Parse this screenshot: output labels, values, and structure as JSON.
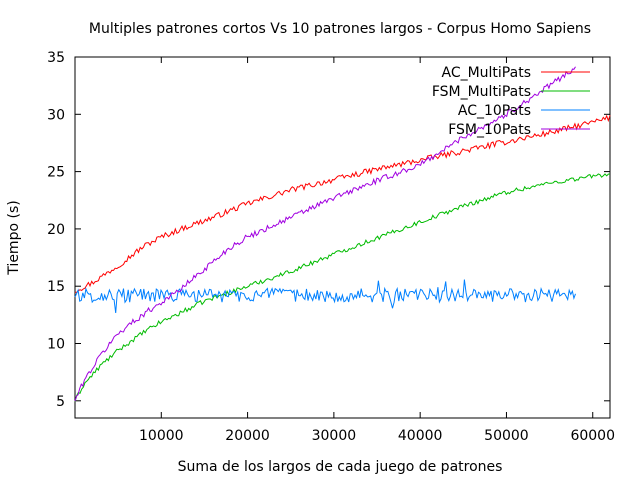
{
  "chart_data": {
    "type": "line",
    "title": "Multiples patrones cortos Vs 10 patrones largos - Corpus Homo Sapiens",
    "xlabel": "Suma de los largos de cada juego de patrones",
    "ylabel": "Tiempo (s)",
    "xlim": [
      0,
      62000
    ],
    "ylim": [
      3.5,
      35
    ],
    "xticks": [
      10000,
      20000,
      30000,
      40000,
      50000,
      60000
    ],
    "yticks": [
      5,
      10,
      15,
      20,
      25,
      30,
      35
    ],
    "grid": false,
    "legend_position": "top-right",
    "series": [
      {
        "name": "AC_MultiPats",
        "color": "#ff0000",
        "x": [
          0,
          2000,
          5000,
          8000,
          10000,
          13000,
          16000,
          20000,
          25000,
          30000,
          35000,
          40000,
          45000,
          50000,
          55000,
          60000,
          62000
        ],
        "y": [
          14.6,
          15.3,
          16.8,
          18.5,
          19.3,
          20.2,
          21.0,
          22.2,
          23.4,
          24.3,
          25.2,
          26.0,
          26.8,
          27.6,
          28.4,
          29.3,
          29.7
        ],
        "noise": 0.25
      },
      {
        "name": "FSM_MultiPats",
        "color": "#00bb00",
        "x": [
          0,
          1000,
          3000,
          5000,
          8000,
          10000,
          12000,
          15000,
          20000,
          25000,
          30000,
          35000,
          40000,
          45000,
          50000,
          55000,
          60000,
          62000
        ],
        "y": [
          5.0,
          6.4,
          8.1,
          9.4,
          11.0,
          11.9,
          12.6,
          13.7,
          15.0,
          16.3,
          17.8,
          19.2,
          20.6,
          22.0,
          23.2,
          24.0,
          24.6,
          24.8
        ],
        "noise": 0.2
      },
      {
        "name": "AC_10Pats",
        "color": "#0080ff",
        "x": [
          0,
          58000
        ],
        "y": [
          14.2,
          14.2
        ],
        "noise": 0.6
      },
      {
        "name": "FSM_10Pats",
        "color": "#a000e0",
        "x": [
          0,
          1000,
          3000,
          5000,
          8000,
          10000,
          12000,
          15000,
          18000,
          20000,
          25000,
          30000,
          35000,
          40000,
          45000,
          50000,
          55000,
          58000
        ],
        "y": [
          5.0,
          6.7,
          9.0,
          10.9,
          12.6,
          13.6,
          14.6,
          16.5,
          18.4,
          19.3,
          21.0,
          22.7,
          24.2,
          25.6,
          28.0,
          30.0,
          32.5,
          34.1
        ],
        "noise": 0.25
      }
    ]
  }
}
